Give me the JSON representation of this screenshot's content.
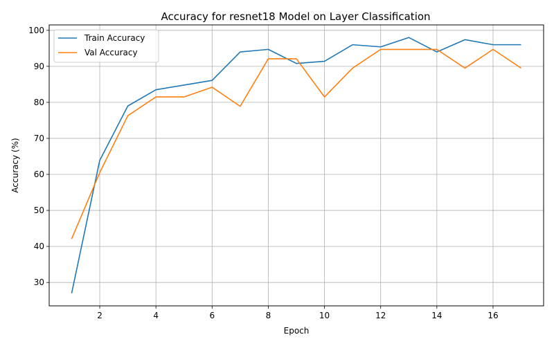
{
  "chart_data": {
    "type": "line",
    "title": "Accuracy for resnet18 Model on Layer Classification",
    "xlabel": "Epoch",
    "ylabel": "Accuracy (%)",
    "x": [
      1,
      2,
      3,
      4,
      5,
      6,
      7,
      8,
      9,
      10,
      11,
      12,
      13,
      14,
      15,
      16,
      17
    ],
    "xlim": [
      0.2,
      17.8
    ],
    "ylim": [
      23.5,
      101.5
    ],
    "xticks": [
      2,
      4,
      6,
      8,
      10,
      12,
      14,
      16
    ],
    "yticks": [
      30,
      40,
      50,
      60,
      70,
      80,
      90,
      100
    ],
    "grid": true,
    "legend_position": "top-left",
    "series": [
      {
        "name": "Train Accuracy",
        "color": "#1f77b4",
        "values": [
          27.0,
          63.9,
          79.0,
          83.5,
          84.8,
          86.1,
          94.0,
          94.7,
          90.8,
          91.4,
          96.0,
          95.4,
          98.0,
          94.0,
          97.4,
          96.0,
          96.0
        ]
      },
      {
        "name": "Val Accuracy",
        "color": "#ff7f0e",
        "values": [
          42.1,
          60.5,
          76.3,
          81.5,
          81.5,
          84.2,
          78.9,
          92.1,
          92.1,
          81.5,
          89.5,
          94.7,
          94.7,
          94.7,
          89.5,
          94.7,
          89.5
        ]
      }
    ]
  }
}
